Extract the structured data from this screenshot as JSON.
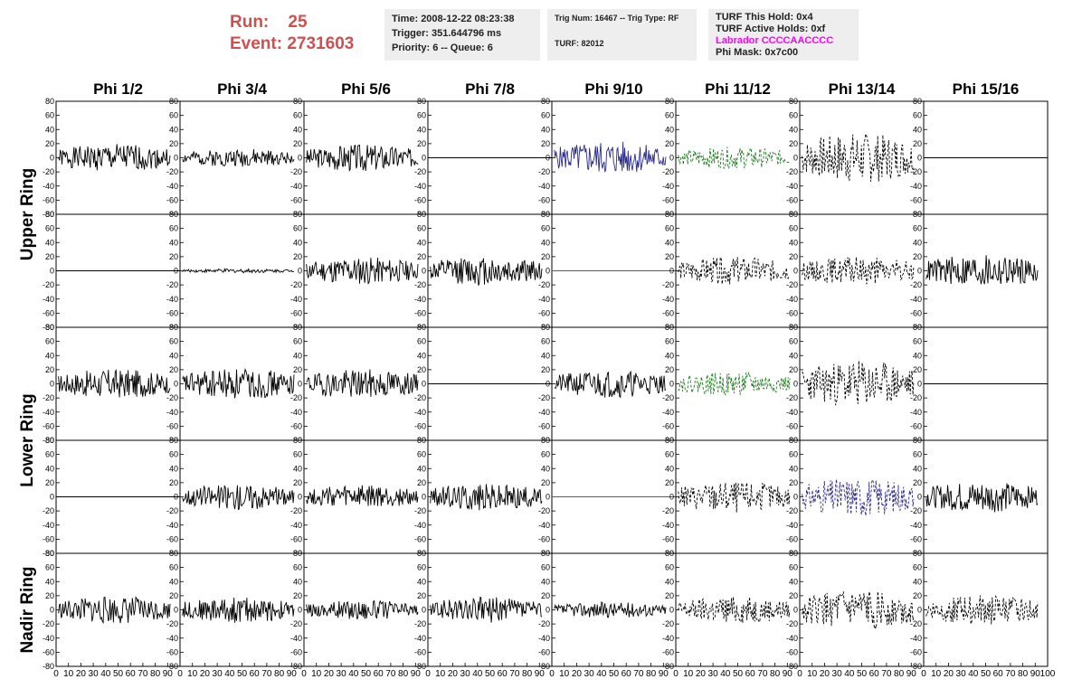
{
  "header": {
    "run_label": "Run:",
    "run_value": "25",
    "event_label": "Event:",
    "event_value": "2731603",
    "time_line": "Time: 2008-12-22 08:23:38",
    "trigger_line": "Trigger: 351.644796 ms",
    "priority_line": "Priority: 6 -- Queue: 6",
    "trig_line": "Trig Num: 16467 -- Trig Type: RF",
    "turf_line": "TURF: 82012",
    "turf_hold_line": "TURF This Hold: 0x4",
    "turf_active_line": "TURF Active Holds: 0xf",
    "labrador_line": "Labrador CCCCAACCCC",
    "phi_mask_line": "Phi Mask: 0x7c00",
    "labrador_color": "#ff00ff",
    "run_color": "#d05050"
  },
  "columns": [
    "Phi 1/2",
    "Phi 3/4",
    "Phi 5/6",
    "Phi 7/8",
    "Phi 9/10",
    "Phi 11/12",
    "Phi 13/14",
    "Phi 15/16"
  ],
  "rows": [
    {
      "label": "Upper Ring",
      "span": [
        0,
        1
      ]
    },
    {
      "label": "Lower Ring",
      "span": [
        2,
        3
      ]
    },
    {
      "label": "Nadir Ring",
      "span": [
        4,
        4
      ]
    }
  ],
  "chart_data": {
    "type": "line",
    "xlim": [
      0,
      100
    ],
    "ylim": [
      -80,
      80
    ],
    "yticks": [
      -80,
      -60,
      -40,
      -20,
      0,
      20,
      40,
      60,
      80
    ],
    "xticks": [
      0,
      10,
      20,
      30,
      40,
      50,
      60,
      70,
      80,
      90,
      100
    ],
    "grid": false,
    "colors": {
      "black": "#000000",
      "blue": "#2b2b8c",
      "green": "#1f7a1f",
      "red": "#c03030"
    },
    "panels": [
      [
        {
          "style": "solid",
          "color": "black",
          "amp": 14,
          "seed": 1
        },
        {
          "style": "solid",
          "color": "black",
          "amp": 9,
          "seed": 2
        },
        {
          "style": "solid",
          "color": "black",
          "amp": 14,
          "seed": 3
        },
        {
          "style": "flat",
          "color": "black",
          "amp": 0,
          "seed": 4
        },
        {
          "style": "solid",
          "color": "blue",
          "amp": 17,
          "seed": 5
        },
        {
          "style": "dashed",
          "color": "green",
          "amp": 11,
          "seed": 6
        },
        {
          "style": "dashed",
          "color": "black",
          "amp": 26,
          "seed": 7
        },
        {
          "style": "flat",
          "color": "black",
          "amp": 0,
          "seed": 8
        }
      ],
      [
        {
          "style": "flat",
          "color": "black",
          "amp": 0,
          "seed": 9
        },
        {
          "style": "solid",
          "color": "black",
          "amp": 2,
          "seed": 10
        },
        {
          "style": "solid",
          "color": "black",
          "amp": 14,
          "seed": 11
        },
        {
          "style": "solid",
          "color": "black",
          "amp": 15,
          "seed": 12
        },
        {
          "style": "flat",
          "color": "red",
          "amp": 0,
          "seed": 13
        },
        {
          "style": "dashed",
          "color": "black",
          "amp": 14,
          "seed": 14
        },
        {
          "style": "dashed",
          "color": "black",
          "amp": 14,
          "seed": 15
        },
        {
          "style": "solid",
          "color": "black",
          "amp": 17,
          "seed": 16
        }
      ],
      [
        {
          "style": "solid",
          "color": "black",
          "amp": 15,
          "seed": 17
        },
        {
          "style": "solid",
          "color": "black",
          "amp": 16,
          "seed": 18
        },
        {
          "style": "solid",
          "color": "black",
          "amp": 15,
          "seed": 19
        },
        {
          "style": "flat",
          "color": "black",
          "amp": 0,
          "seed": 20
        },
        {
          "style": "solid",
          "color": "black",
          "amp": 14,
          "seed": 21
        },
        {
          "style": "dashed",
          "color": "green",
          "amp": 12,
          "seed": 22
        },
        {
          "style": "dashed",
          "color": "black",
          "amp": 24,
          "seed": 23
        },
        {
          "style": "flat",
          "color": "black",
          "amp": 0,
          "seed": 24
        }
      ],
      [
        {
          "style": "flat",
          "color": "black",
          "amp": 0,
          "seed": 25
        },
        {
          "style": "solid",
          "color": "black",
          "amp": 13,
          "seed": 26
        },
        {
          "style": "solid",
          "color": "black",
          "amp": 12,
          "seed": 27
        },
        {
          "style": "solid",
          "color": "black",
          "amp": 14,
          "seed": 28
        },
        {
          "style": "flat",
          "color": "red",
          "amp": 0,
          "seed": 29
        },
        {
          "style": "dashed",
          "color": "black",
          "amp": 16,
          "seed": 30
        },
        {
          "style": "dashed",
          "color": "blue",
          "amp": 20,
          "seed": 31
        },
        {
          "style": "solid",
          "color": "black",
          "amp": 16,
          "seed": 32
        }
      ],
      [
        {
          "style": "solid",
          "color": "black",
          "amp": 14,
          "seed": 33
        },
        {
          "style": "solid",
          "color": "black",
          "amp": 13,
          "seed": 34
        },
        {
          "style": "solid",
          "color": "black",
          "amp": 10,
          "seed": 35
        },
        {
          "style": "solid",
          "color": "black",
          "amp": 13,
          "seed": 36
        },
        {
          "style": "solid",
          "color": "black",
          "amp": 8,
          "seed": 37
        },
        {
          "style": "dashed",
          "color": "black",
          "amp": 14,
          "seed": 38
        },
        {
          "style": "dashed",
          "color": "black",
          "amp": 20,
          "seed": 39
        },
        {
          "style": "dashed",
          "color": "black",
          "amp": 15,
          "seed": 40
        }
      ]
    ]
  }
}
